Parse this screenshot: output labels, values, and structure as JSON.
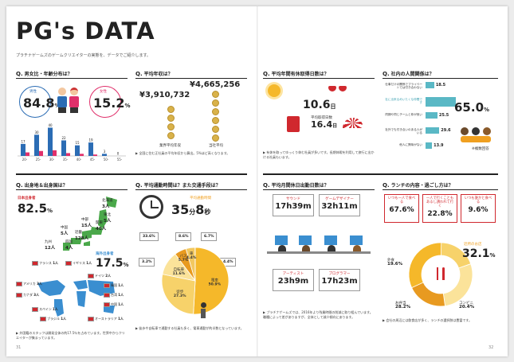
{
  "title": "PG's DATA",
  "subtitle": "プラチナゲームズのゲームクリエイターの実態を、データでご紹介します。",
  "page_left": "31",
  "page_right": "32",
  "colors": {
    "blue": "#2b6cb4",
    "pink": "#e0306b",
    "teal": "#5ab8c5",
    "orange": "#f0a020",
    "red": "#d0282e"
  },
  "q1": {
    "label": "男女比・年齢分布は？",
    "male_label": "男性",
    "male_value": "84.8",
    "male_unit": "%",
    "female_label": "女性",
    "female_value": "15.2",
    "female_unit": "%",
    "ages": [
      "20-",
      "25-",
      "30-",
      "35-",
      "40-",
      "45-",
      "50-",
      "55-"
    ],
    "male_counts": [
      17,
      30,
      40,
      22,
      15,
      19,
      3,
      0
    ],
    "female_counts": [
      5,
      7,
      8,
      4,
      3,
      2,
      0,
      0
    ]
  },
  "q2": {
    "label": "平均年収は？",
    "value_high": "¥4,665,256",
    "value_low": "¥3,910,732",
    "label_low": "業界平均年収",
    "label_high": "当社平均",
    "note": "▶ 全国に住む正社員の平均年収から算出。5%ほど高くなります。"
  },
  "q3": {
    "label": "平均年間有休取得日数は？",
    "value1": "10.6",
    "unit1": "日",
    "caption2": "平均取得日数",
    "value2": "16.4",
    "unit2": "日",
    "note": "▶ 有休を取ってゆっくり休む社員が多いです。長期休暇を利用して旅行に出かける社員もいます。"
  },
  "q4": {
    "label": "社内の人間関係は？",
    "items": [
      {
        "text": "仕事だけの関係でプライベートでは付き合わない",
        "value": "18.5"
      },
      {
        "text": "社に出来るめいたくな仲間です",
        "value": "65.0"
      },
      {
        "text": "同期や同じチームと仲が良い",
        "value": "25.5"
      },
      {
        "text": "社外でも付き合いのある人がいる",
        "value": "29.6"
      },
      {
        "text": "他人に興味がない",
        "value": "13.9"
      }
    ],
    "highlight_value": "65.0",
    "highlight_unit": "%",
    "caption": "※複数回答"
  },
  "q5": {
    "label": "出身地＆出身国は？",
    "japan_label": "日本出身者",
    "japan_value": "82.5",
    "japan_unit": "%",
    "overseas_label": "海外出身者",
    "overseas_value": "17.5",
    "overseas_unit": "%",
    "regions": [
      {
        "name": "北海道",
        "value": "3人"
      },
      {
        "name": "東北",
        "value": "5人"
      },
      {
        "name": "関東",
        "value": "40人"
      },
      {
        "name": "中部",
        "value": "15人"
      },
      {
        "name": "近畿",
        "value": "128人"
      },
      {
        "name": "中国",
        "value": "5人"
      },
      {
        "name": "四国",
        "value": "4人"
      },
      {
        "name": "九州",
        "value": "12人"
      }
    ],
    "countries": [
      {
        "name": "フランス",
        "value": "1人"
      },
      {
        "name": "イギリス",
        "value": "1人"
      },
      {
        "name": "ドイツ",
        "value": "2人"
      },
      {
        "name": "アメリカ",
        "value": "3人"
      },
      {
        "name": "カナダ",
        "value": "3人"
      },
      {
        "name": "スペイン",
        "value": "1人"
      },
      {
        "name": "韓国",
        "value": "1人"
      },
      {
        "name": "台湾",
        "value": "1人"
      },
      {
        "name": "中国",
        "value": "1人"
      },
      {
        "name": "ブラジル",
        "value": "1人"
      },
      {
        "name": "オーストラリア",
        "value": "1人"
      }
    ],
    "note": "▶ 外国籍のスタッフは開発全体の約17.5％を占めています。世界中からクリエイターが集まっています。"
  },
  "q6": {
    "label": "平均通勤時間は？また交通手段は？",
    "caption": "平均通勤時間",
    "minutes": "35",
    "min_unit": "分",
    "seconds": "8",
    "sec_unit": "秒",
    "modes": [
      {
        "name": "電車",
        "value": "50.9%"
      },
      {
        "name": "徒歩",
        "value": "27.3%"
      },
      {
        "name": "自転車",
        "value": "11.6%"
      },
      {
        "name": "バス",
        "value": "5.7%"
      },
      {
        "name": "車",
        "value": "4.4%"
      }
    ],
    "bubbles": [
      "33.6%",
      "8.6%",
      "6.7%",
      "3.2%",
      "4.4%"
    ],
    "note": "▶ 徒歩や自転車で通勤する社員も多く、電車通勤が約半数となっています。"
  },
  "q7": {
    "label": "平均月間休日出勤日数は？",
    "roles": [
      {
        "name": "サウンド",
        "time": "17h39m"
      },
      {
        "name": "ゲームデザイナー",
        "time": "32h11m"
      },
      {
        "name": "アーティスト",
        "time": "23h9m"
      },
      {
        "name": "プログラマー",
        "time": "17h23m"
      }
    ],
    "note": "▶ プラチナゲームズでは、2016年より残業時間の削減に取り組んでいます。職種によって差がありますが、全体として減少傾向にあります。"
  },
  "q8": {
    "label": "ランチの内容・過ごし方は？",
    "boxes": [
      {
        "text": "いつも一人で食べる",
        "value": "67.6%"
      },
      {
        "text": "一人で行くこともあるし誘われて行く",
        "value": "22.8%"
      },
      {
        "text": "いつも誰かと食べる",
        "value": "9.6%"
      }
    ],
    "slices": [
      {
        "name": "外食",
        "value": "19.6%"
      },
      {
        "name": "お弁当",
        "value": "28.2%"
      },
      {
        "name": "コンビニ",
        "value": "20.4%"
      },
      {
        "name": "社食",
        "value": "32.1%"
      }
    ],
    "center_label": "近所のお店",
    "center_value": "32.1",
    "center_unit": "%",
    "note": "▶ 会社の周辺には飲食店が多く、ランチの選択肢は豊富です。"
  }
}
